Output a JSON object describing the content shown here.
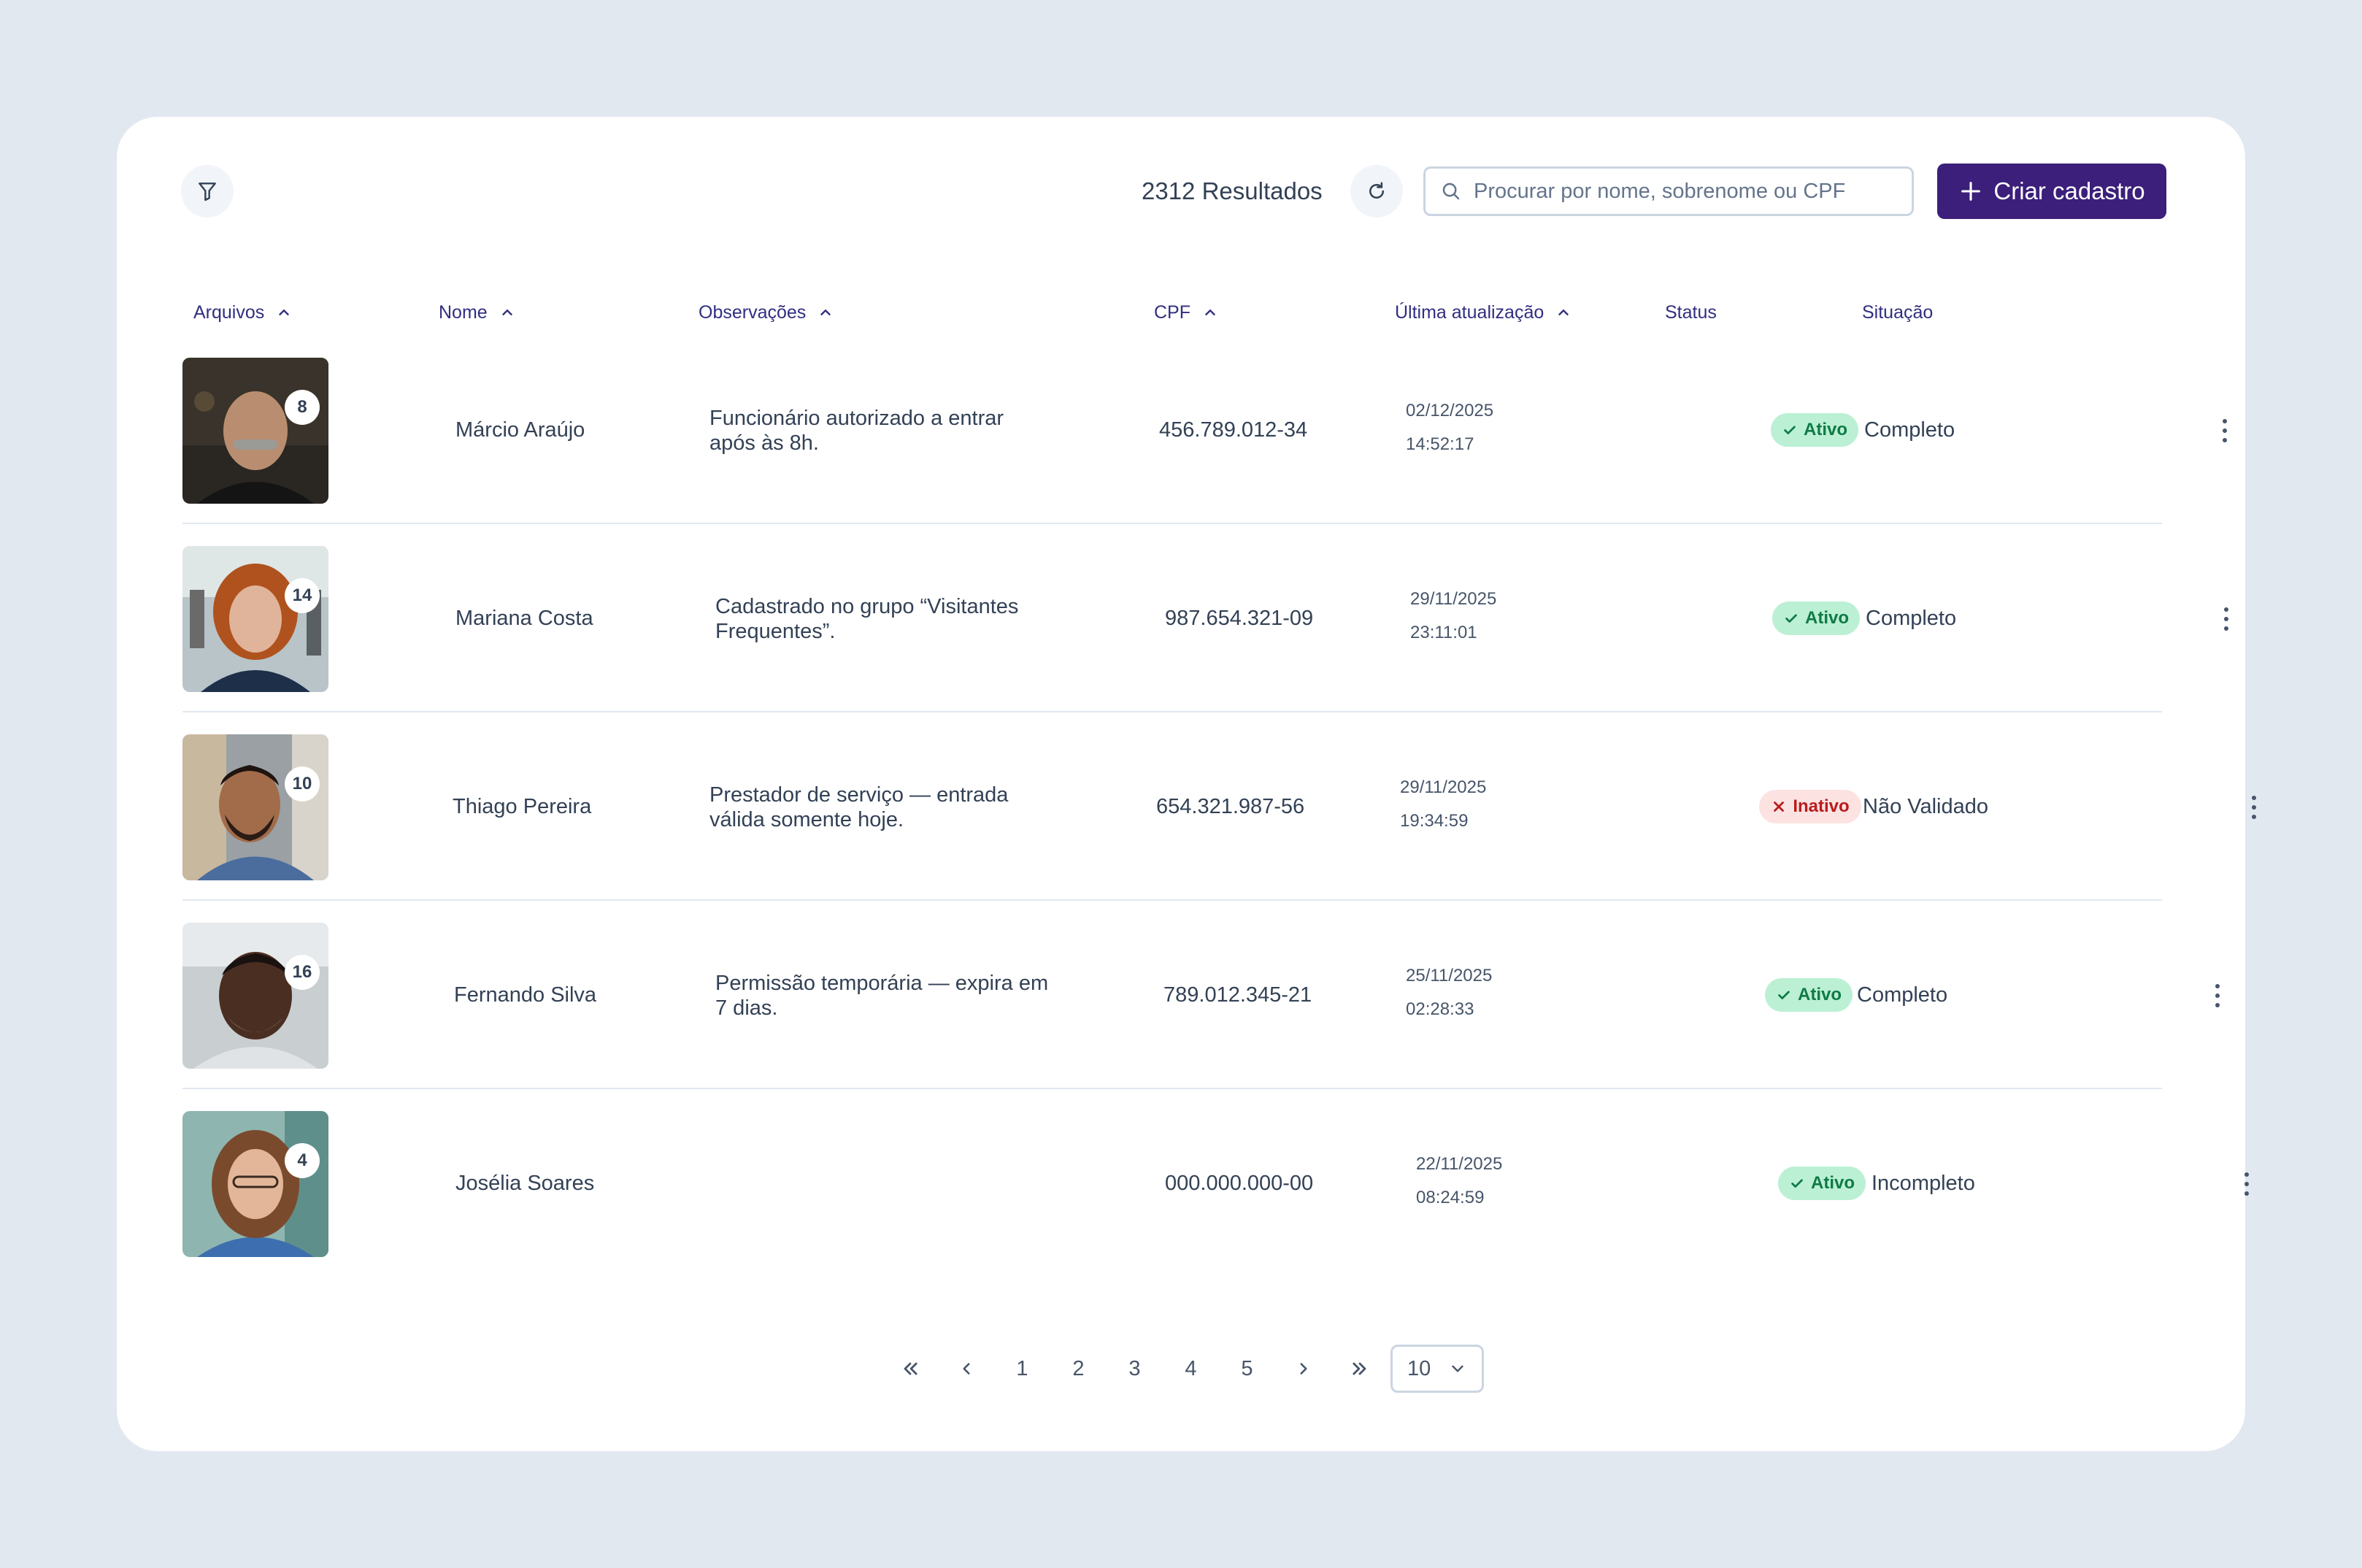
{
  "toolbar": {
    "results_label": "2312 Resultados",
    "search_placeholder": "Procurar por nome, sobrenome ou CPF",
    "create_label": "Criar cadastro"
  },
  "columns": {
    "files": "Arquivos",
    "name": "Nome",
    "notes": "Observações",
    "cpf": "CPF",
    "updated": "Última atualização",
    "status": "Status",
    "situation": "Situação"
  },
  "rows": [
    {
      "files_count": "8",
      "name": "Márcio Araújo",
      "notes": "Funcionário autorizado a entrar após às 8h.",
      "cpf": "456.789.012-34",
      "date": "02/12/2025",
      "time": "14:52:17",
      "status": "Ativo",
      "situation": "Completo"
    },
    {
      "files_count": "14",
      "name": "Mariana Costa",
      "notes": "Cadastrado no grupo “Visitantes Frequentes”.",
      "cpf": "987.654.321-09",
      "date": "29/11/2025",
      "time": "23:11:01",
      "status": "Ativo",
      "situation": "Completo"
    },
    {
      "files_count": "10",
      "name": "Thiago Pereira",
      "notes": "Prestador de serviço — entrada válida somente hoje.",
      "cpf": "654.321.987-56",
      "date": "29/11/2025",
      "time": "19:34:59",
      "status": "Inativo",
      "situation": "Não Validado"
    },
    {
      "files_count": "16",
      "name": "Fernando Silva",
      "notes": "Permissão temporária — expira em 7 dias.",
      "cpf": "789.012.345-21",
      "date": "25/11/2025",
      "time": "02:28:33",
      "status": "Ativo",
      "situation": "Completo"
    },
    {
      "files_count": "4",
      "name": "Josélia Soares",
      "notes": "",
      "cpf": "000.000.000-00",
      "date": "22/11/2025",
      "time": "08:24:59",
      "status": "Ativo",
      "situation": "Incompleto"
    }
  ],
  "pagination": {
    "pages": [
      "1",
      "2",
      "3",
      "4",
      "5"
    ],
    "page_size": "10"
  },
  "colors": {
    "primary": "#3b1f7a",
    "active_bg": "#bbf0d4",
    "active_text": "#0f7a45",
    "inactive_bg": "#fde2e2",
    "inactive_text": "#b91c1c"
  }
}
